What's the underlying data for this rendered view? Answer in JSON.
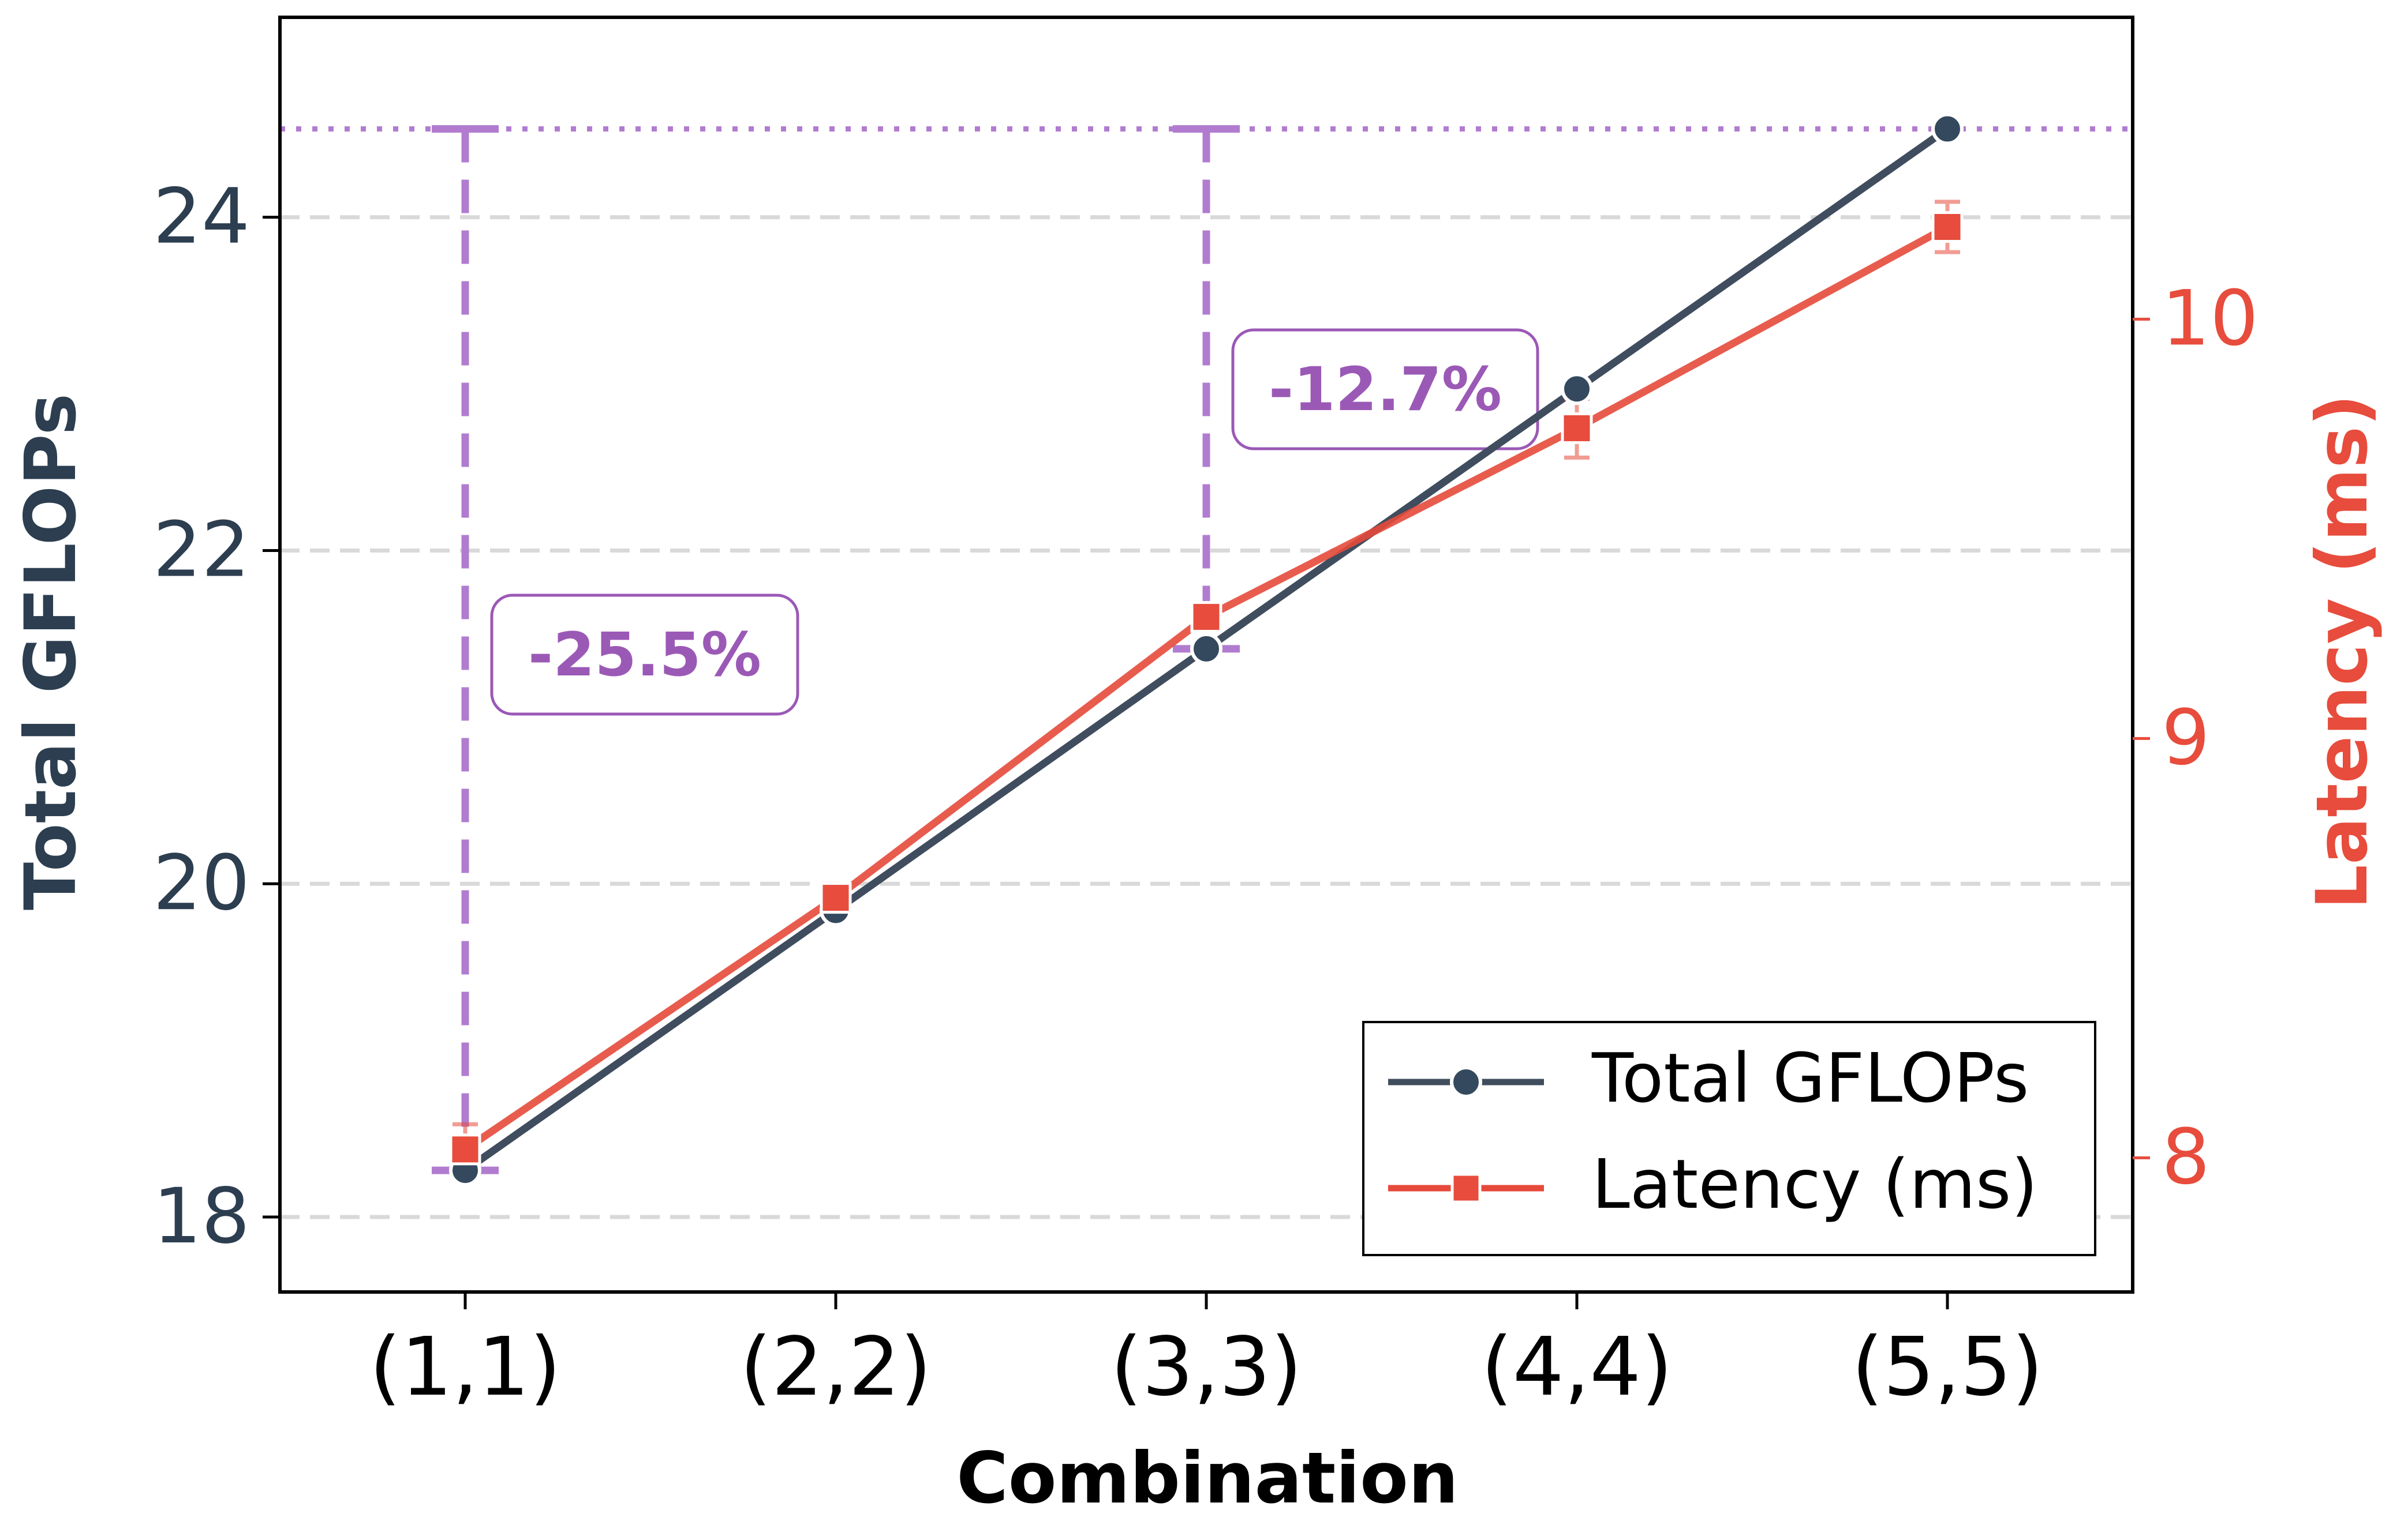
{
  "chart_data": {
    "type": "line",
    "title": "",
    "xlabel": "Combination",
    "ylabel_left": "Total GFLOPs",
    "ylabel_right": "Latency (ms)",
    "categories": [
      "(1,1)",
      "(2,2)",
      "(3,3)",
      "(4,4)",
      "(5,5)"
    ],
    "ylim_left": [
      17.55,
      25.2
    ],
    "ylim_right": [
      7.68,
      10.72
    ],
    "yticks_left": [
      18,
      20,
      22,
      24
    ],
    "yticks_right": [
      8,
      9,
      10
    ],
    "grid": "horizontal-dashed",
    "legend_position": "lower-right",
    "series": [
      {
        "name": "Total GFLOPs",
        "axis": "left",
        "marker": "circle",
        "color": "#3f4d5e",
        "values": [
          18.28,
          19.84,
          21.41,
          22.97,
          24.53
        ]
      },
      {
        "name": "Latency (ms)",
        "axis": "right",
        "marker": "square",
        "color": "#e64a3b",
        "values": [
          8.02,
          8.62,
          9.29,
          9.74,
          10.22
        ],
        "errors": [
          0.06,
          0.03,
          0.03,
          0.07,
          0.06
        ]
      }
    ],
    "reference_line": {
      "axis": "left",
      "value": 24.53,
      "style": "dotted",
      "color": "#b17ccf"
    },
    "annotations": [
      {
        "category_index": 0,
        "axis": "left",
        "from": 24.53,
        "to": 18.28,
        "label": "-25.5%",
        "color": "#9b59b6"
      },
      {
        "category_index": 2,
        "axis": "left",
        "from": 24.53,
        "to": 21.41,
        "label": "-12.7%",
        "color": "#9b59b6"
      }
    ],
    "colors": {
      "left_axis": "#2c3e50",
      "right_axis": "#e74c3c",
      "grid": "#d9d9d9",
      "annotation": "#9b59b6"
    }
  }
}
